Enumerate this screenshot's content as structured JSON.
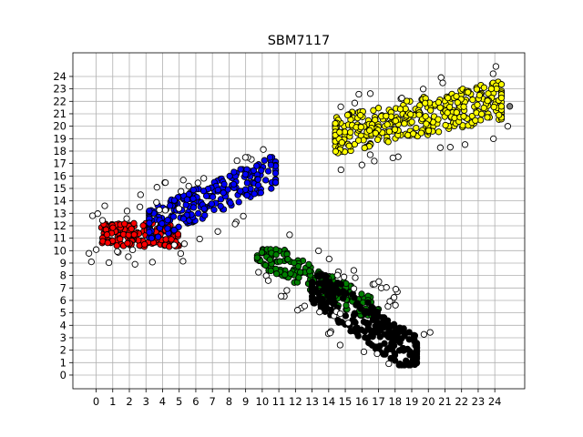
{
  "chart_data": {
    "type": "scatter",
    "title": "SBM7117",
    "xlabel": "",
    "ylabel": "",
    "xlim": [
      -1.4,
      25.8
    ],
    "ylim": [
      -1.1,
      25.9
    ],
    "x_ticks": [
      0,
      1,
      2,
      3,
      4,
      5,
      6,
      7,
      8,
      9,
      10,
      11,
      12,
      13,
      14,
      15,
      16,
      17,
      18,
      19,
      20,
      21,
      22,
      23,
      24
    ],
    "y_ticks": [
      0,
      1,
      2,
      3,
      4,
      5,
      6,
      7,
      8,
      9,
      10,
      11,
      12,
      13,
      14,
      15,
      16,
      17,
      18,
      19,
      20,
      21,
      22,
      23,
      24
    ],
    "grid": true,
    "legend": "none",
    "series": [
      {
        "color": "#ff0000",
        "cluster": {
          "x_range": [
            0.3,
            5.0
          ],
          "y_range": [
            9.2,
            13.3
          ],
          "slope": 0.0,
          "thickness": 1.9
        },
        "points": 150
      },
      {
        "color": "#0000ff",
        "cluster": {
          "x_range": [
            3.2,
            10.8
          ],
          "y_range": [
            11.0,
            17.5
          ],
          "slope": 0.58,
          "thickness": 2.3
        },
        "points": 220
      },
      {
        "color": "#ffff00",
        "cluster": {
          "x_range": [
            14.4,
            24.4
          ],
          "y_range": [
            17.8,
            23.6
          ],
          "slope": 0.28,
          "thickness": 3.0
        },
        "points": 340
      },
      {
        "color": "#008000",
        "cluster": {
          "x_range": [
            9.7,
            17.0
          ],
          "y_range": [
            4.8,
            10.1
          ],
          "slope": -0.72,
          "thickness": 1.9
        },
        "points": 190
      },
      {
        "color": "#000000",
        "cluster": {
          "x_range": [
            13.0,
            19.3
          ],
          "y_range": [
            0.8,
            8.0
          ],
          "slope": -0.95,
          "thickness": 2.4
        },
        "points": 260
      },
      {
        "color": "#ffffff",
        "role": "outliers",
        "points": 110
      },
      {
        "color": "#808080",
        "points": [
          [
            24.9,
            21.6
          ]
        ]
      }
    ]
  }
}
